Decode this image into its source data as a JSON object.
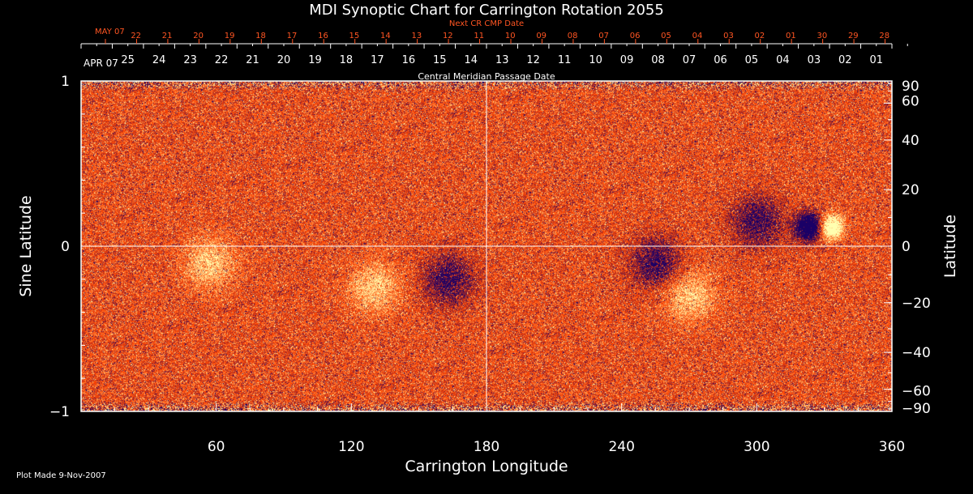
{
  "chart_data": {
    "type": "heatmap",
    "title": "MDI Synoptic Chart for Carrington Rotation 2055",
    "xlabel": "Carrington Longitude",
    "ylabel": "Sine Latitude",
    "ylabel_right": "Latitude",
    "xlim": [
      0,
      360
    ],
    "ylim": [
      -1,
      1
    ],
    "x_ticks": [
      60,
      120,
      180,
      240,
      300,
      360
    ],
    "y_ticks_left": [
      -1,
      0,
      1
    ],
    "y_ticks_right": [
      90,
      60,
      40,
      20,
      0,
      -20,
      -40,
      -60,
      -90
    ],
    "grid": "center crosshair at longitude 180 and sine latitude 0",
    "colormap": {
      "low": "#1a0066",
      "mid": "#ff4400",
      "high": "#ffffb0"
    },
    "top_axis": {
      "label": "Central Meridian Passage Date",
      "month_label": "APR 07",
      "day_labels": [
        "25",
        "24",
        "23",
        "22",
        "21",
        "20",
        "19",
        "18",
        "17",
        "16",
        "15",
        "14",
        "13",
        "12",
        "11",
        "10",
        "09",
        "08",
        "07",
        "06",
        "05",
        "04",
        "03",
        "02",
        "01"
      ]
    },
    "next_cr_axis": {
      "label": "Next CR CMP Date",
      "month_label": "MAY 07",
      "day_labels": [
        "22",
        "21",
        "20",
        "19",
        "18",
        "17",
        "16",
        "15",
        "14",
        "13",
        "12",
        "11",
        "10",
        "09",
        "08",
        "07",
        "06",
        "05",
        "04",
        "03",
        "02",
        "01",
        "30",
        "29",
        "28"
      ],
      "color": "#ff5522"
    },
    "features": [
      {
        "name": "active-region-bipole",
        "longitude": 328,
        "sine_latitude": 0.12
      },
      {
        "name": "dark-cluster",
        "longitude": 300,
        "sine_latitude": 0.15
      },
      {
        "name": "bright-plage",
        "longitude": 57,
        "sine_latitude": -0.1
      },
      {
        "name": "bright-plage",
        "longitude": 130,
        "sine_latitude": -0.25
      },
      {
        "name": "dark-cluster",
        "longitude": 163,
        "sine_latitude": -0.2
      },
      {
        "name": "dark-cluster",
        "longitude": 255,
        "sine_latitude": -0.1
      },
      {
        "name": "bright-plage",
        "longitude": 270,
        "sine_latitude": -0.3
      }
    ]
  },
  "footer": {
    "plot_made": "Plot Made  9-Nov-2007"
  }
}
